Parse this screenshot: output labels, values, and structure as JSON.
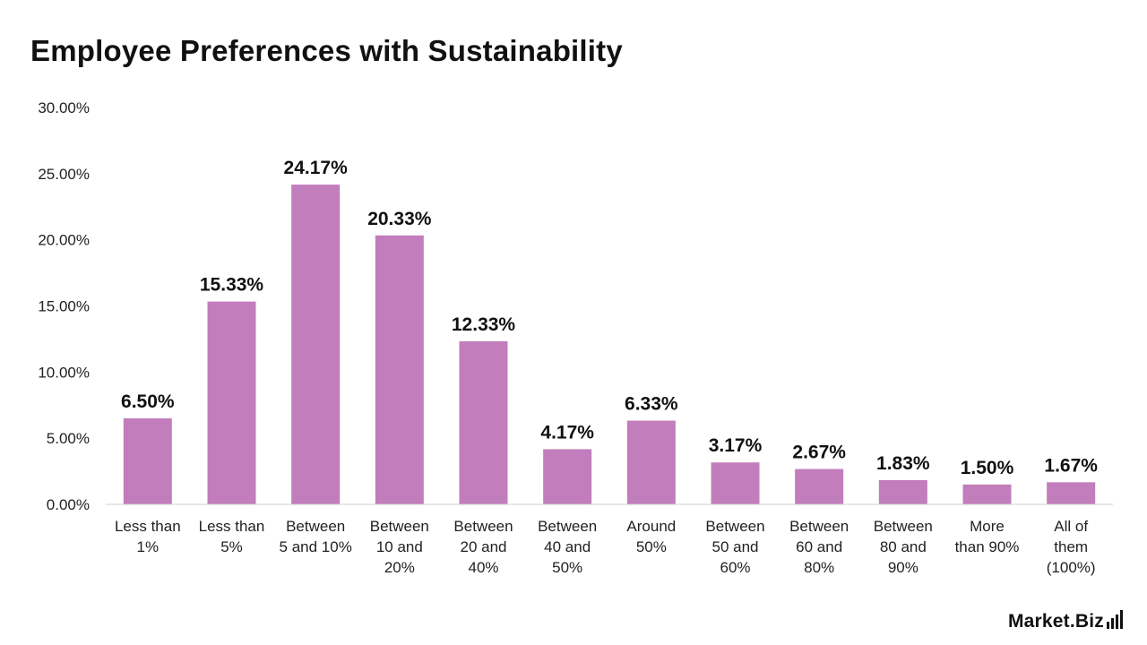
{
  "chart_data": {
    "type": "bar",
    "title": "Employee Preferences with Sustainability",
    "categories": [
      [
        "Less than",
        "1%"
      ],
      [
        "Less than",
        "5%"
      ],
      [
        "Between",
        "5 and 10%"
      ],
      [
        "Between",
        "10 and",
        "20%"
      ],
      [
        "Between",
        "20 and",
        "40%"
      ],
      [
        "Between",
        "40 and",
        "50%"
      ],
      [
        "Around",
        "50%"
      ],
      [
        "Between",
        "50 and",
        "60%"
      ],
      [
        "Between",
        "60 and",
        "80%"
      ],
      [
        "Between",
        "80 and",
        "90%"
      ],
      [
        "More",
        "than 90%"
      ],
      [
        "All of",
        "them",
        "(100%)"
      ]
    ],
    "values": [
      6.5,
      15.33,
      24.17,
      20.33,
      12.33,
      4.17,
      6.33,
      3.17,
      2.67,
      1.83,
      1.5,
      1.67
    ],
    "value_labels": [
      "6.50%",
      "15.33%",
      "24.17%",
      "20.33%",
      "12.33%",
      "4.17%",
      "6.33%",
      "3.17%",
      "2.67%",
      "1.83%",
      "1.50%",
      "1.67%"
    ],
    "y_ticks": [
      "0.00%",
      "5.00%",
      "10.00%",
      "15.00%",
      "20.00%",
      "25.00%",
      "30.00%"
    ],
    "ylim": [
      0,
      30
    ],
    "grid": false,
    "legend": "none",
    "bar_color": "#c27dbc"
  },
  "brand": {
    "name": "Market.Biz",
    "color": "#111111"
  }
}
